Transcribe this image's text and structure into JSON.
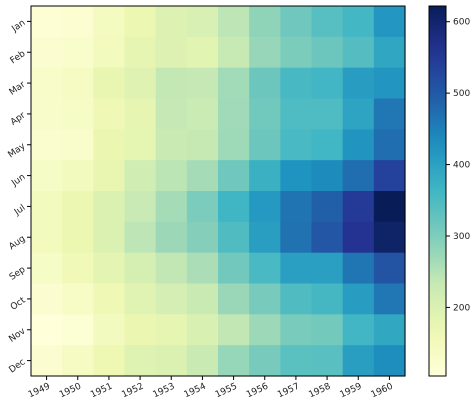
{
  "chart_data": {
    "type": "heatmap",
    "title": "",
    "xlabel": "",
    "ylabel": "",
    "x_categories": [
      "1949",
      "1950",
      "1951",
      "1952",
      "1953",
      "1954",
      "1955",
      "1956",
      "1957",
      "1958",
      "1959",
      "1960"
    ],
    "y_categories": [
      "Jan",
      "Feb",
      "Mar",
      "Apr",
      "May",
      "Jun",
      "Jul",
      "Aug",
      "Sep",
      "Oct",
      "Nov",
      "Dec"
    ],
    "values": [
      [
        112,
        115,
        145,
        171,
        196,
        204,
        242,
        284,
        315,
        340,
        360,
        417
      ],
      [
        118,
        126,
        150,
        180,
        196,
        188,
        233,
        277,
        301,
        318,
        342,
        391
      ],
      [
        132,
        141,
        178,
        193,
        236,
        235,
        267,
        317,
        356,
        362,
        406,
        419
      ],
      [
        129,
        135,
        163,
        181,
        235,
        227,
        269,
        313,
        348,
        348,
        396,
        461
      ],
      [
        121,
        125,
        172,
        183,
        229,
        234,
        270,
        318,
        355,
        363,
        420,
        472
      ],
      [
        135,
        149,
        178,
        218,
        243,
        264,
        315,
        374,
        422,
        435,
        472,
        535
      ],
      [
        148,
        170,
        199,
        230,
        264,
        302,
        364,
        413,
        465,
        491,
        548,
        622
      ],
      [
        148,
        170,
        199,
        242,
        272,
        293,
        347,
        405,
        467,
        505,
        559,
        606
      ],
      [
        136,
        158,
        184,
        209,
        237,
        259,
        312,
        355,
        404,
        404,
        463,
        508
      ],
      [
        119,
        133,
        162,
        191,
        211,
        229,
        274,
        306,
        347,
        359,
        407,
        461
      ],
      [
        104,
        114,
        146,
        172,
        180,
        203,
        237,
        271,
        305,
        310,
        362,
        390
      ],
      [
        118,
        140,
        166,
        194,
        201,
        229,
        278,
        306,
        336,
        337,
        405,
        432
      ]
    ],
    "colormap": "YlGnBu",
    "colorbar": {
      "min": 104,
      "max": 622,
      "ticks": [
        200,
        300,
        400,
        500,
        600
      ],
      "tick_labels": [
        "200",
        "300",
        "400",
        "500",
        "600"
      ]
    }
  }
}
